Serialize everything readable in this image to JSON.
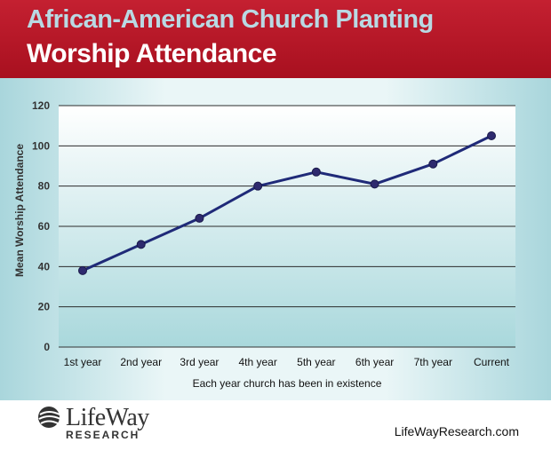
{
  "header": {
    "title_line1": "African-American Church Planting",
    "title_line2": "Worship Attendance"
  },
  "chart_data": {
    "type": "line",
    "categories": [
      "1st year",
      "2nd year",
      "3rd year",
      "4th year",
      "5th year",
      "6th year",
      "7th year",
      "Current"
    ],
    "series": [
      {
        "values": [
          38,
          51,
          64,
          80,
          87,
          81,
          91,
          105
        ]
      }
    ],
    "xlabel": "Each year church has been in existence",
    "ylabel": "Mean Worship Attendance",
    "ylim": [
      0,
      120
    ],
    "yticks": [
      0,
      20,
      40,
      60,
      80,
      100,
      120
    ],
    "grid": true,
    "line_color": "#1f2a78",
    "marker_color": "#2e2a6e"
  },
  "footer": {
    "logo_name": "LifeWay",
    "logo_sub": "RESEARCH",
    "website": "LifeWayResearch.com"
  },
  "colors": {
    "header_red": "#b4121f",
    "title_blue": "#b9d9e3",
    "plot_fill": "#d8eef0"
  }
}
